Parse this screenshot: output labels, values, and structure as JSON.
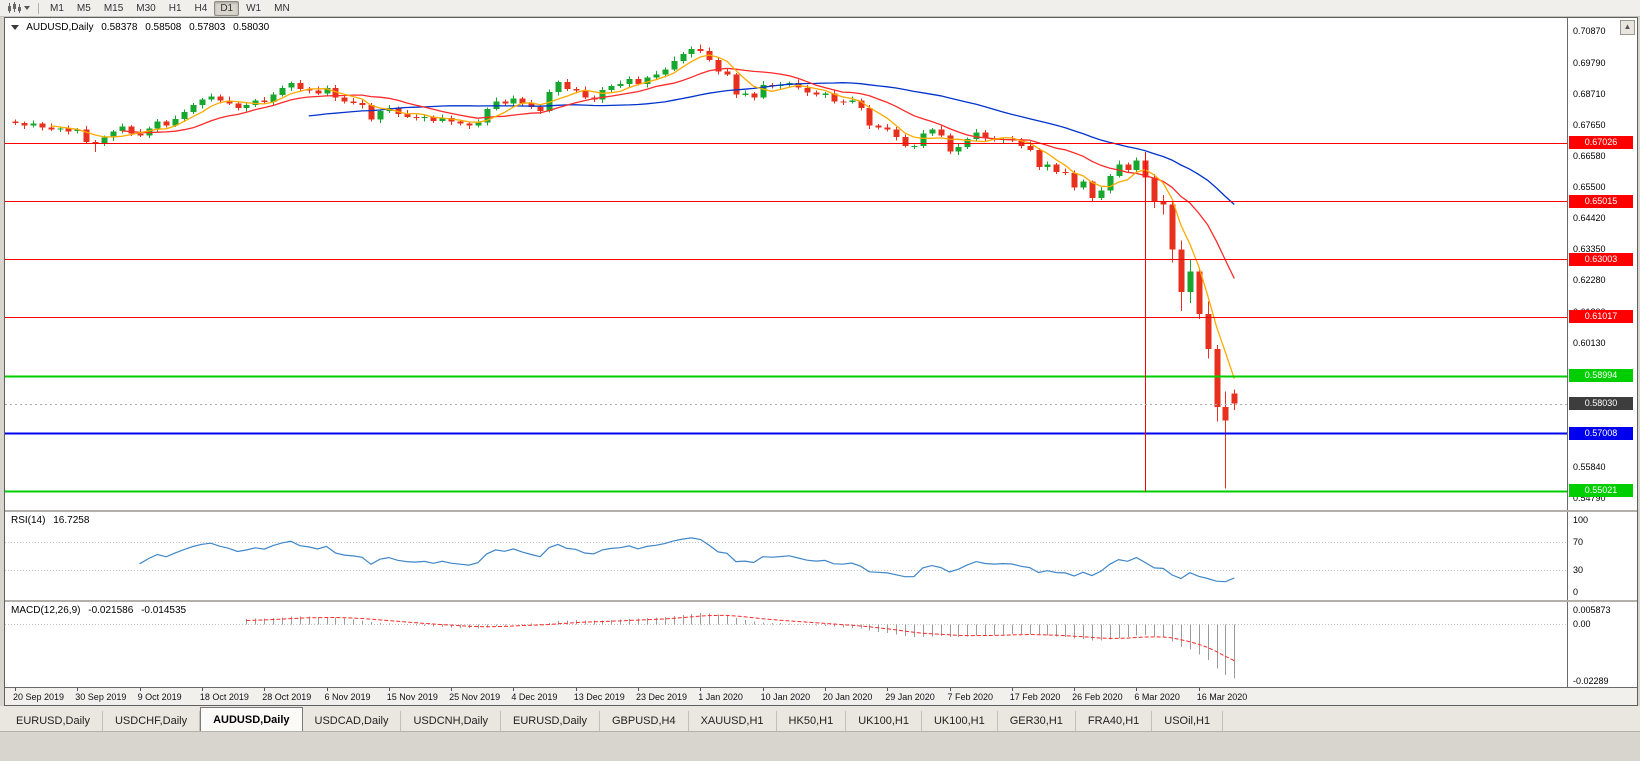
{
  "toolbar": {
    "timeframes": [
      "M1",
      "M5",
      "M15",
      "M30",
      "H1",
      "H4",
      "D1",
      "W1",
      "MN"
    ],
    "active_timeframe": "D1",
    "icons": {
      "chart_type": "candlestick-chart-icon",
      "dropdown": "chevron-down-icon"
    }
  },
  "chart": {
    "symbol": "AUDUSD,Daily",
    "ohlc": {
      "open": "0.58378",
      "high": "0.58508",
      "low": "0.57803",
      "close": "0.58030"
    },
    "price_range": {
      "max": 0.71325,
      "min": 0.54362
    },
    "price_axis_labels": [
      "0.70870",
      "0.69790",
      "0.68710",
      "0.67650",
      "0.66580",
      "0.65500",
      "0.64420",
      "0.63350",
      "0.62280",
      "0.61200",
      "0.60130",
      "0.59050",
      "0.57980",
      "0.56910",
      "0.55840",
      "0.54790"
    ],
    "colors": {
      "bull": "#17a62e",
      "bear": "#e8301f",
      "background": "#ffffff"
    },
    "moving_averages": [
      {
        "period": 34,
        "color": "#0033cc"
      },
      {
        "period": 13,
        "color": "#ff2a2a"
      },
      {
        "period": 5,
        "color": "#ffaa00"
      }
    ],
    "horizontal_lines": [
      {
        "price": 0.67026,
        "label": "0.67026",
        "color": "#ff0000",
        "width": 1
      },
      {
        "price": 0.65015,
        "label": "0.65015",
        "color": "#ff0000",
        "width": 1
      },
      {
        "price": 0.63003,
        "label": "0.63003",
        "color": "#ff0000",
        "width": 1
      },
      {
        "price": 0.61017,
        "label": "0.61017",
        "color": "#ff0000",
        "width": 1
      },
      {
        "price": 0.58994,
        "label": "0.58994",
        "color": "#00ce00",
        "width": 2
      },
      {
        "price": 0.57008,
        "label": "0.57008",
        "color": "#0000ee",
        "width": 2
      },
      {
        "price": 0.55021,
        "label": "0.55021",
        "color": "#00ce00",
        "width": 2
      }
    ],
    "current_price_line": {
      "price": 0.5803,
      "label": "0.58030",
      "color": "#3d3d3d"
    },
    "vertical_line": {
      "index": 127,
      "from_price": 0.667,
      "to_price": 0.55,
      "color": "#ff0000"
    },
    "candles_pips": [
      [
        6775,
        6783,
        6764,
        6770
      ],
      [
        6770,
        6775,
        6750,
        6762
      ],
      [
        6762,
        6779,
        6755,
        6768
      ],
      [
        6768,
        6774,
        6745,
        6755
      ],
      [
        6755,
        6769,
        6743,
        6748
      ],
      [
        6748,
        6759,
        6739,
        6752
      ],
      [
        6752,
        6762,
        6730,
        6742
      ],
      [
        6742,
        6753,
        6735,
        6748
      ],
      [
        6748,
        6760,
        6699,
        6705
      ],
      [
        6705,
        6712,
        6671,
        6698
      ],
      [
        6698,
        6728,
        6692,
        6720
      ],
      [
        6720,
        6747,
        6708,
        6742
      ],
      [
        6742,
        6769,
        6735,
        6758
      ],
      [
        6758,
        6764,
        6725,
        6735
      ],
      [
        6735,
        6749,
        6723,
        6728
      ],
      [
        6728,
        6759,
        6719,
        6752
      ],
      [
        6752,
        6785,
        6740,
        6775
      ],
      [
        6775,
        6780,
        6755,
        6762
      ],
      [
        6762,
        6797,
        6756,
        6785
      ],
      [
        6785,
        6817,
        6774,
        6808
      ],
      [
        6808,
        6840,
        6802,
        6832
      ],
      [
        6832,
        6857,
        6820,
        6852
      ],
      [
        6852,
        6873,
        6845,
        6862
      ],
      [
        6862,
        6868,
        6838,
        6848
      ],
      [
        6848,
        6862,
        6833,
        6838
      ],
      [
        6838,
        6845,
        6813,
        6822
      ],
      [
        6822,
        6842,
        6810,
        6832
      ],
      [
        6832,
        6853,
        6825,
        6848
      ],
      [
        6848,
        6860,
        6836,
        6842
      ],
      [
        6842,
        6877,
        6831,
        6868
      ],
      [
        6868,
        6900,
        6862,
        6892
      ],
      [
        6892,
        6913,
        6880,
        6908
      ],
      [
        6908,
        6919,
        6881,
        6888
      ],
      [
        6888,
        6894,
        6872,
        6882
      ],
      [
        6882,
        6896,
        6867,
        6872
      ],
      [
        6872,
        6899,
        6863,
        6892
      ],
      [
        6892,
        6902,
        6846,
        6858
      ],
      [
        6858,
        6863,
        6838,
        6845
      ],
      [
        6845,
        6857,
        6834,
        6840
      ],
      [
        6840,
        6849,
        6821,
        6832
      ],
      [
        6832,
        6840,
        6776,
        6782
      ],
      [
        6782,
        6817,
        6770,
        6812
      ],
      [
        6812,
        6833,
        6805,
        6822
      ],
      [
        6822,
        6828,
        6792,
        6802
      ],
      [
        6802,
        6816,
        6787,
        6792
      ],
      [
        6792,
        6799,
        6779,
        6788
      ],
      [
        6788,
        6802,
        6776,
        6792
      ],
      [
        6792,
        6797,
        6771,
        6778
      ],
      [
        6778,
        6800,
        6772,
        6788
      ],
      [
        6788,
        6797,
        6764,
        6775
      ],
      [
        6775,
        6783,
        6762,
        6768
      ],
      [
        6768,
        6773,
        6750,
        6762
      ],
      [
        6762,
        6783,
        6755,
        6772
      ],
      [
        6772,
        6824,
        6762,
        6818
      ],
      [
        6818,
        6859,
        6813,
        6845
      ],
      [
        6845,
        6852,
        6829,
        6838
      ],
      [
        6838,
        6865,
        6826,
        6855
      ],
      [
        6855,
        6860,
        6831,
        6838
      ],
      [
        6838,
        6850,
        6819,
        6825
      ],
      [
        6825,
        6834,
        6801,
        6812
      ],
      [
        6812,
        6886,
        6806,
        6878
      ],
      [
        6878,
        6917,
        6866,
        6912
      ],
      [
        6912,
        6923,
        6881,
        6888
      ],
      [
        6888,
        6894,
        6872,
        6882
      ],
      [
        6882,
        6896,
        6853,
        6858
      ],
      [
        6858,
        6865,
        6843,
        6852
      ],
      [
        6852,
        6895,
        6840,
        6885
      ],
      [
        6885,
        6903,
        6878,
        6898
      ],
      [
        6898,
        6917,
        6892,
        6905
      ],
      [
        6905,
        6931,
        6894,
        6922
      ],
      [
        6922,
        6930,
        6899,
        6905
      ],
      [
        6905,
        6933,
        6893,
        6928
      ],
      [
        6928,
        6949,
        6921,
        6938
      ],
      [
        6938,
        6961,
        6928,
        6955
      ],
      [
        6955,
        6999,
        6950,
        6985
      ],
      [
        6985,
        7015,
        6976,
        7008
      ],
      [
        7008,
        7035,
        6996,
        7025
      ],
      [
        7025,
        7041,
        7011,
        7018
      ],
      [
        7018,
        7030,
        6982,
        6988
      ],
      [
        6988,
        6997,
        6937,
        6948
      ],
      [
        6948,
        6956,
        6932,
        6938
      ],
      [
        6938,
        6943,
        6856,
        6868
      ],
      [
        6868,
        6883,
        6861,
        6872
      ],
      [
        6872,
        6878,
        6848,
        6858
      ],
      [
        6858,
        6916,
        6853,
        6902
      ],
      [
        6902,
        6909,
        6889,
        6898
      ],
      [
        6898,
        6912,
        6886,
        6902
      ],
      [
        6902,
        6913,
        6895,
        6908
      ],
      [
        6908,
        6920,
        6886,
        6892
      ],
      [
        6892,
        6901,
        6864,
        6875
      ],
      [
        6875,
        6883,
        6862,
        6868
      ],
      [
        6868,
        6877,
        6856,
        6872
      ],
      [
        6872,
        6883,
        6838,
        6845
      ],
      [
        6845,
        6851,
        6832,
        6842
      ],
      [
        6842,
        6862,
        6837,
        6848
      ],
      [
        6848,
        6855,
        6813,
        6822
      ],
      [
        6822,
        6832,
        6750,
        6762
      ],
      [
        6762,
        6767,
        6748,
        6755
      ],
      [
        6755,
        6767,
        6742,
        6748
      ],
      [
        6748,
        6757,
        6711,
        6722
      ],
      [
        6722,
        6730,
        6686,
        6692
      ],
      [
        6692,
        6697,
        6680,
        6692
      ],
      [
        6692,
        6746,
        6685,
        6735
      ],
      [
        6735,
        6754,
        6725,
        6748
      ],
      [
        6748,
        6762,
        6723,
        6728
      ],
      [
        6728,
        6735,
        6663,
        6672
      ],
      [
        6672,
        6698,
        6660,
        6688
      ],
      [
        6688,
        6720,
        6681,
        6715
      ],
      [
        6715,
        6750,
        6709,
        6738
      ],
      [
        6738,
        6747,
        6707,
        6718
      ],
      [
        6718,
        6726,
        6706,
        6712
      ],
      [
        6712,
        6720,
        6700,
        6715
      ],
      [
        6715,
        6726,
        6705,
        6712
      ],
      [
        6712,
        6718,
        6682,
        6692
      ],
      [
        6692,
        6706,
        6673,
        6678
      ],
      [
        6678,
        6685,
        6609,
        6618
      ],
      [
        6618,
        6638,
        6606,
        6628
      ],
      [
        6628,
        6633,
        6595,
        6602
      ],
      [
        6602,
        6614,
        6592,
        6598
      ],
      [
        6598,
        6607,
        6537,
        6548
      ],
      [
        6548,
        6576,
        6542,
        6568
      ],
      [
        6568,
        6573,
        6500,
        6512
      ],
      [
        6512,
        6549,
        6505,
        6538
      ],
      [
        6538,
        6594,
        6528,
        6588
      ],
      [
        6588,
        6642,
        6583,
        6628
      ],
      [
        6628,
        6635,
        6599,
        6608
      ],
      [
        6608,
        6652,
        6596,
        6642
      ],
      [
        6642,
        6662,
        6530,
        6582
      ],
      [
        6582,
        6594,
        6478,
        6498
      ],
      [
        6498,
        6522,
        6455,
        6490
      ],
      [
        6490,
        6498,
        6290,
        6335
      ],
      [
        6335,
        6365,
        6123,
        6188
      ],
      [
        6188,
        6302,
        6150,
        6258
      ],
      [
        6258,
        6268,
        6095,
        6112
      ],
      [
        6112,
        6155,
        5958,
        5992
      ],
      [
        5992,
        6005,
        5742,
        5792
      ],
      [
        5792,
        5845,
        5510,
        5745
      ],
      [
        5837.8,
        5850.8,
        5780.3,
        5803
      ]
    ]
  },
  "rsi": {
    "name": "RSI(14)",
    "value": "16.7258",
    "period": 14,
    "line_color": "#3f87c9",
    "levels": [
      70,
      30
    ],
    "axis_labels": [
      "100",
      "70",
      "30",
      "0"
    ],
    "range": {
      "max": 100,
      "min": 0
    }
  },
  "macd": {
    "name": "MACD(12,26,9)",
    "value": "-0.021586",
    "signal_value": "-0.014535",
    "fast": 12,
    "slow": 26,
    "signal": 9,
    "histogram_color": "#9b9b9b",
    "signal_color": "#ff2a2a",
    "axis_labels": [
      "0.005873",
      "0.00",
      "-0.02289"
    ],
    "range": {
      "max": 0.005873,
      "min": -0.02289
    }
  },
  "time_axis": {
    "candles_per_label": 7,
    "labels": [
      "20 Sep 2019",
      "30 Sep 2019",
      "9 Oct 2019",
      "18 Oct 2019",
      "28 Oct 2019",
      "6 Nov 2019",
      "15 Nov 2019",
      "25 Nov 2019",
      "4 Dec 2019",
      "13 Dec 2019",
      "23 Dec 2019",
      "1 Jan 2020",
      "10 Jan 2020",
      "20 Jan 2020",
      "29 Jan 2020",
      "7 Feb 2020",
      "17 Feb 2020",
      "26 Feb 2020",
      "6 Mar 2020",
      "16 Mar 2020"
    ]
  },
  "tabs": [
    {
      "label": "EURUSD,Daily",
      "active": false
    },
    {
      "label": "USDCHF,Daily",
      "active": false
    },
    {
      "label": "AUDUSD,Daily",
      "active": true
    },
    {
      "label": "USDCAD,Daily",
      "active": false
    },
    {
      "label": "USDCNH,Daily",
      "active": false
    },
    {
      "label": "EURUSD,Daily",
      "active": false
    },
    {
      "label": "GBPUSD,H4",
      "active": false
    },
    {
      "label": "XAUUSD,H1",
      "active": false
    },
    {
      "label": "HK50,H1",
      "active": false
    },
    {
      "label": "UK100,H1",
      "active": false
    },
    {
      "label": "UK100,H1",
      "active": false
    },
    {
      "label": "GER30,H1",
      "active": false
    },
    {
      "label": "FRA40,H1",
      "active": false
    },
    {
      "label": "USOil,H1",
      "active": false
    }
  ]
}
